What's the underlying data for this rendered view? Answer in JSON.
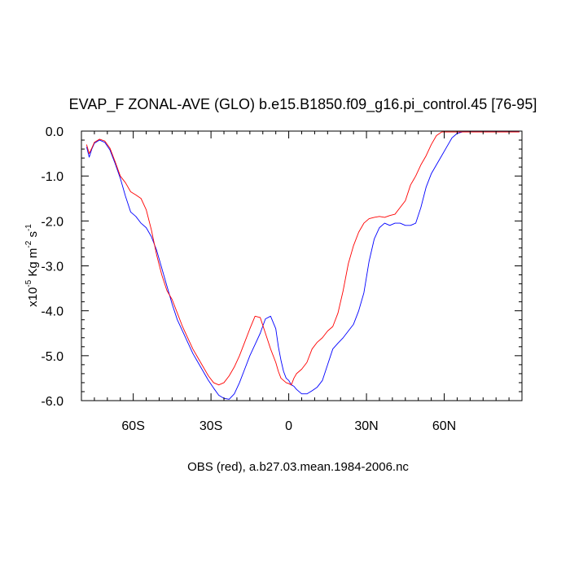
{
  "chart_data": {
    "type": "line",
    "title": "EVAP_F ZONAL-AVE (GLO) b.e15.B1850.f09_g16.pi_control.45 [76-95]",
    "xlabel": "OBS (red), a.b27.03.mean.1984-2006.nc",
    "ylabel": {
      "prefix": "x10",
      "exp": "-5",
      "unit1": " Kg m",
      "exp2": "-2",
      "unit2": " s",
      "exp3": "-1"
    },
    "xlim": [
      -80,
      90
    ],
    "ylim": [
      -6.0,
      0.0
    ],
    "xticks": [
      {
        "value": -60,
        "label": "60S"
      },
      {
        "value": -30,
        "label": "30S"
      },
      {
        "value": 0,
        "label": "0"
      },
      {
        "value": 30,
        "label": "30N"
      },
      {
        "value": 60,
        "label": "60N"
      }
    ],
    "yticks": [
      {
        "value": 0.0,
        "label": "0.0"
      },
      {
        "value": -1.0,
        "label": "-1.0"
      },
      {
        "value": -2.0,
        "label": "-2.0"
      },
      {
        "value": -3.0,
        "label": "-3.0"
      },
      {
        "value": -4.0,
        "label": "-4.0"
      },
      {
        "value": -5.0,
        "label": "-5.0"
      },
      {
        "value": -6.0,
        "label": "-6.0"
      }
    ],
    "series": [
      {
        "name": "b.e15.B1850.f09_g16.pi_control.45 [76-95]",
        "color": "#0000ff",
        "x": [
          -78,
          -77,
          -76,
          -75,
          -73,
          -71,
          -69,
          -67,
          -65,
          -63,
          -61,
          -59,
          -57,
          -55,
          -53,
          -51,
          -49,
          -47,
          -45,
          -43,
          -41,
          -39,
          -37,
          -35,
          -33,
          -31,
          -29,
          -27,
          -25,
          -23,
          -21,
          -19,
          -17,
          -15,
          -13,
          -11,
          -9,
          -7,
          -5,
          -4,
          -3,
          -2,
          -1,
          0,
          1,
          2,
          3,
          5,
          7,
          9,
          11,
          13,
          15,
          17,
          19,
          21,
          23,
          25,
          27,
          29,
          31,
          33,
          35,
          37,
          39,
          41,
          43,
          45,
          47,
          49,
          51,
          53,
          55,
          57,
          59,
          61,
          63,
          65,
          67,
          69,
          71,
          73,
          75,
          77,
          79,
          81,
          83,
          85,
          87,
          89
        ],
        "y": [
          -0.35,
          -0.58,
          -0.4,
          -0.27,
          -0.2,
          -0.25,
          -0.42,
          -0.72,
          -1.05,
          -1.45,
          -1.8,
          -1.9,
          -2.05,
          -2.15,
          -2.35,
          -2.65,
          -3.05,
          -3.45,
          -3.85,
          -4.2,
          -4.45,
          -4.7,
          -4.95,
          -5.15,
          -5.35,
          -5.55,
          -5.72,
          -5.88,
          -5.95,
          -5.97,
          -5.85,
          -5.6,
          -5.3,
          -5.0,
          -4.75,
          -4.5,
          -4.18,
          -4.12,
          -4.4,
          -4.8,
          -5.1,
          -5.35,
          -5.5,
          -5.55,
          -5.65,
          -5.68,
          -5.75,
          -5.85,
          -5.85,
          -5.78,
          -5.7,
          -5.55,
          -5.2,
          -4.85,
          -4.72,
          -4.6,
          -4.45,
          -4.3,
          -4.0,
          -3.6,
          -2.9,
          -2.4,
          -2.15,
          -2.05,
          -2.1,
          -2.05,
          -2.05,
          -2.1,
          -2.1,
          -2.05,
          -1.7,
          -1.25,
          -0.95,
          -0.75,
          -0.55,
          -0.35,
          -0.15,
          -0.05,
          -0.02,
          -0.02,
          -0.02,
          -0.02,
          -0.02,
          -0.02,
          -0.02,
          -0.02,
          -0.02,
          -0.02,
          -0.02,
          -0.02
        ]
      },
      {
        "name": "OBS (red), a.b27.03.mean.1984-2006.nc",
        "color": "#ff0000",
        "x": [
          -78,
          -77,
          -76,
          -75,
          -73,
          -71,
          -69,
          -67,
          -65,
          -63,
          -61,
          -59,
          -57,
          -55,
          -53,
          -51,
          -49,
          -47,
          -45,
          -43,
          -41,
          -39,
          -37,
          -35,
          -33,
          -31,
          -29,
          -27,
          -25,
          -23,
          -21,
          -19,
          -17,
          -15,
          -13,
          -11,
          -9,
          -7,
          -5,
          -4,
          -3,
          -2,
          -1,
          0,
          1,
          2,
          3,
          5,
          7,
          9,
          11,
          13,
          15,
          17,
          19,
          21,
          23,
          25,
          27,
          29,
          31,
          33,
          35,
          37,
          39,
          41,
          43,
          45,
          47,
          49,
          51,
          53,
          55,
          57,
          59,
          61,
          63,
          65,
          67,
          69,
          71,
          73,
          75,
          77,
          79,
          81,
          83,
          85,
          87,
          89
        ],
        "y": [
          -0.3,
          -0.5,
          -0.38,
          -0.25,
          -0.18,
          -0.22,
          -0.38,
          -0.68,
          -1.0,
          -1.15,
          -1.35,
          -1.42,
          -1.5,
          -1.75,
          -2.2,
          -2.75,
          -3.2,
          -3.55,
          -3.75,
          -4.05,
          -4.35,
          -4.6,
          -4.85,
          -5.05,
          -5.25,
          -5.45,
          -5.6,
          -5.65,
          -5.6,
          -5.45,
          -5.25,
          -5.0,
          -4.7,
          -4.4,
          -4.12,
          -4.15,
          -4.5,
          -4.85,
          -5.15,
          -5.35,
          -5.5,
          -5.55,
          -5.6,
          -5.62,
          -5.65,
          -5.5,
          -5.4,
          -5.3,
          -5.15,
          -4.85,
          -4.7,
          -4.6,
          -4.45,
          -4.35,
          -4.05,
          -3.55,
          -2.95,
          -2.55,
          -2.25,
          -2.05,
          -1.95,
          -1.92,
          -1.9,
          -1.92,
          -1.88,
          -1.85,
          -1.7,
          -1.55,
          -1.2,
          -1.0,
          -0.75,
          -0.55,
          -0.3,
          -0.1,
          -0.02,
          -0.02,
          -0.02,
          -0.02,
          -0.02,
          -0.02,
          -0.02,
          -0.02,
          -0.02,
          -0.02,
          -0.02,
          -0.02,
          -0.02,
          -0.02,
          -0.02,
          -0.02
        ]
      }
    ]
  }
}
